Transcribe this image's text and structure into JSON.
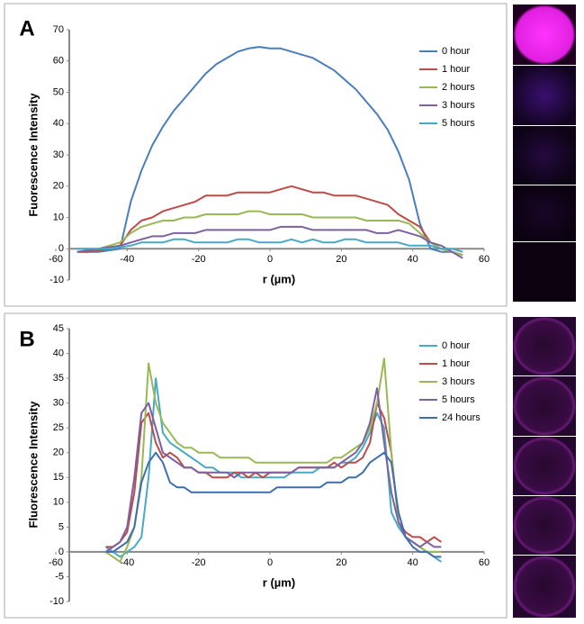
{
  "chart_data": [
    {
      "type": "line",
      "panel_label": "A",
      "x_label": "r (µm)",
      "y_label": "Fuorescence Intensity",
      "xlim": [
        -60,
        60
      ],
      "xticks": [
        -60,
        -40,
        -20,
        0,
        20,
        40,
        60
      ],
      "ylim": [
        -10,
        70
      ],
      "yticks": [
        -10,
        0,
        10,
        20,
        30,
        40,
        50,
        60,
        70
      ],
      "grid": false,
      "legend": "upper right",
      "x": [
        -54,
        -51,
        -48,
        -45,
        -42,
        -39,
        -36,
        -33,
        -30,
        -27,
        -24,
        -21,
        -18,
        -15,
        -12,
        -9,
        -6,
        -3,
        0,
        3,
        6,
        9,
        12,
        15,
        18,
        21,
        24,
        27,
        30,
        33,
        36,
        39,
        42,
        45,
        48,
        51,
        54
      ],
      "series": [
        {
          "name": "0 hour",
          "color": "#4a7ebb",
          "values": [
            -1,
            -1,
            -1,
            -0.5,
            0,
            15,
            25,
            33,
            39,
            44,
            48,
            52,
            56,
            59,
            61,
            63,
            64,
            64.5,
            64,
            64,
            63,
            62,
            61,
            59,
            57,
            54,
            51,
            47,
            43,
            38,
            31,
            22,
            8,
            0,
            -1,
            -1,
            -2
          ]
        },
        {
          "name": "1 hour",
          "color": "#be4b48",
          "values": [
            -1,
            -1,
            -0.5,
            0,
            1,
            6,
            9,
            10,
            12,
            13,
            14,
            15,
            17,
            17,
            17,
            18,
            18,
            18,
            18,
            19,
            20,
            19,
            18,
            18,
            17,
            17,
            17,
            16,
            15,
            14,
            11,
            9,
            7,
            2,
            0,
            -1,
            -2
          ]
        },
        {
          "name": "2 hours",
          "color": "#98b954",
          "values": [
            -1,
            -0.5,
            0,
            1,
            2,
            5,
            7,
            8,
            9,
            9,
            10,
            10,
            11,
            11,
            11,
            11,
            12,
            12,
            11,
            11,
            11,
            11,
            10,
            10,
            10,
            10,
            10,
            9,
            9,
            9,
            9,
            8,
            5,
            2,
            0,
            -1,
            -2
          ]
        },
        {
          "name": "3 hours",
          "color": "#7d60a0",
          "values": [
            -1,
            -0.5,
            0,
            0.5,
            1,
            2,
            3,
            4,
            4,
            5,
            5,
            5,
            6,
            6,
            6,
            6,
            6,
            6,
            6,
            7,
            7,
            7,
            6,
            6,
            6,
            6,
            6,
            6,
            5,
            5,
            6,
            5,
            4,
            2,
            1,
            -1,
            -3
          ]
        },
        {
          "name": "5 hours",
          "color": "#46aac5",
          "values": [
            0,
            0,
            0,
            0,
            0.5,
            1,
            2,
            2,
            2,
            3,
            3,
            2,
            2,
            2,
            2,
            3,
            3,
            2,
            2,
            2,
            3,
            2,
            3,
            2,
            2,
            3,
            3,
            2,
            2,
            2,
            2,
            1,
            1,
            1,
            0,
            0,
            -1
          ]
        }
      ]
    },
    {
      "type": "line",
      "panel_label": "B",
      "x_label": "r (µm)",
      "y_label": "Fluorescence Intensity",
      "xlim": [
        -60,
        60
      ],
      "xticks": [
        -60,
        -40,
        -20,
        0,
        20,
        40,
        60
      ],
      "ylim": [
        -10,
        45
      ],
      "yticks": [
        -10,
        -5,
        0,
        5,
        10,
        15,
        20,
        25,
        30,
        35,
        40,
        45
      ],
      "grid": false,
      "legend": "upper right",
      "x": [
        -46,
        -44,
        -42,
        -40,
        -38,
        -36,
        -34,
        -32,
        -30,
        -28,
        -26,
        -24,
        -22,
        -20,
        -18,
        -16,
        -14,
        -12,
        -10,
        -8,
        -6,
        -4,
        -2,
        0,
        2,
        4,
        6,
        8,
        10,
        12,
        14,
        16,
        18,
        20,
        22,
        24,
        26,
        28,
        30,
        32,
        34,
        36,
        38,
        40,
        42,
        44,
        46,
        48
      ],
      "series": [
        {
          "name": "0 hour",
          "color": "#46aac5",
          "values": [
            1,
            0,
            -1,
            0,
            1,
            3,
            15,
            35,
            24,
            22,
            21,
            20,
            19,
            18,
            17,
            17,
            16,
            16,
            16,
            15,
            15,
            15,
            15,
            15,
            15,
            15,
            16,
            16,
            16,
            16,
            17,
            17,
            17,
            18,
            18,
            19,
            21,
            24,
            28,
            25,
            8,
            5,
            3,
            2,
            1,
            0,
            -1,
            -2
          ]
        },
        {
          "name": "1 hour",
          "color": "#be4b48",
          "values": [
            1,
            1,
            2,
            4,
            12,
            26,
            28,
            22,
            19,
            20,
            19,
            17,
            17,
            16,
            16,
            15,
            15,
            15,
            16,
            16,
            15,
            16,
            15,
            16,
            16,
            16,
            16,
            17,
            17,
            17,
            17,
            17,
            18,
            17,
            18,
            18,
            19,
            22,
            30,
            27,
            20,
            6,
            4,
            3,
            3,
            2,
            3,
            2
          ]
        },
        {
          "name": "3 hours",
          "color": "#98b954",
          "values": [
            0,
            -1,
            -2,
            1,
            5,
            15,
            38,
            30,
            26,
            24,
            22,
            21,
            21,
            20,
            20,
            20,
            19,
            19,
            19,
            19,
            19,
            18,
            18,
            18,
            18,
            18,
            18,
            18,
            18,
            18,
            18,
            18,
            19,
            19,
            20,
            21,
            22,
            25,
            30,
            39,
            20,
            6,
            3,
            2,
            1,
            0,
            0,
            0
          ]
        },
        {
          "name": "5 hours",
          "color": "#7d60a0",
          "values": [
            0,
            1,
            2,
            5,
            15,
            28,
            30,
            25,
            20,
            19,
            18,
            17,
            17,
            16,
            16,
            16,
            16,
            16,
            15,
            16,
            16,
            16,
            16,
            16,
            16,
            16,
            16,
            17,
            17,
            17,
            17,
            17,
            17,
            18,
            19,
            20,
            22,
            26,
            33,
            22,
            12,
            6,
            3,
            2,
            1,
            2,
            1,
            1
          ]
        },
        {
          "name": "24 hours",
          "color": "#3d6fae",
          "values": [
            0,
            0,
            1,
            2,
            5,
            14,
            18,
            20,
            18,
            14,
            13,
            13,
            12,
            12,
            12,
            12,
            12,
            12,
            12,
            12,
            12,
            12,
            12,
            12,
            13,
            13,
            13,
            13,
            13,
            13,
            13,
            14,
            14,
            14,
            15,
            15,
            16,
            18,
            19,
            20,
            18,
            8,
            3,
            1,
            0,
            0,
            -1,
            -1
          ]
        }
      ]
    }
  ]
}
